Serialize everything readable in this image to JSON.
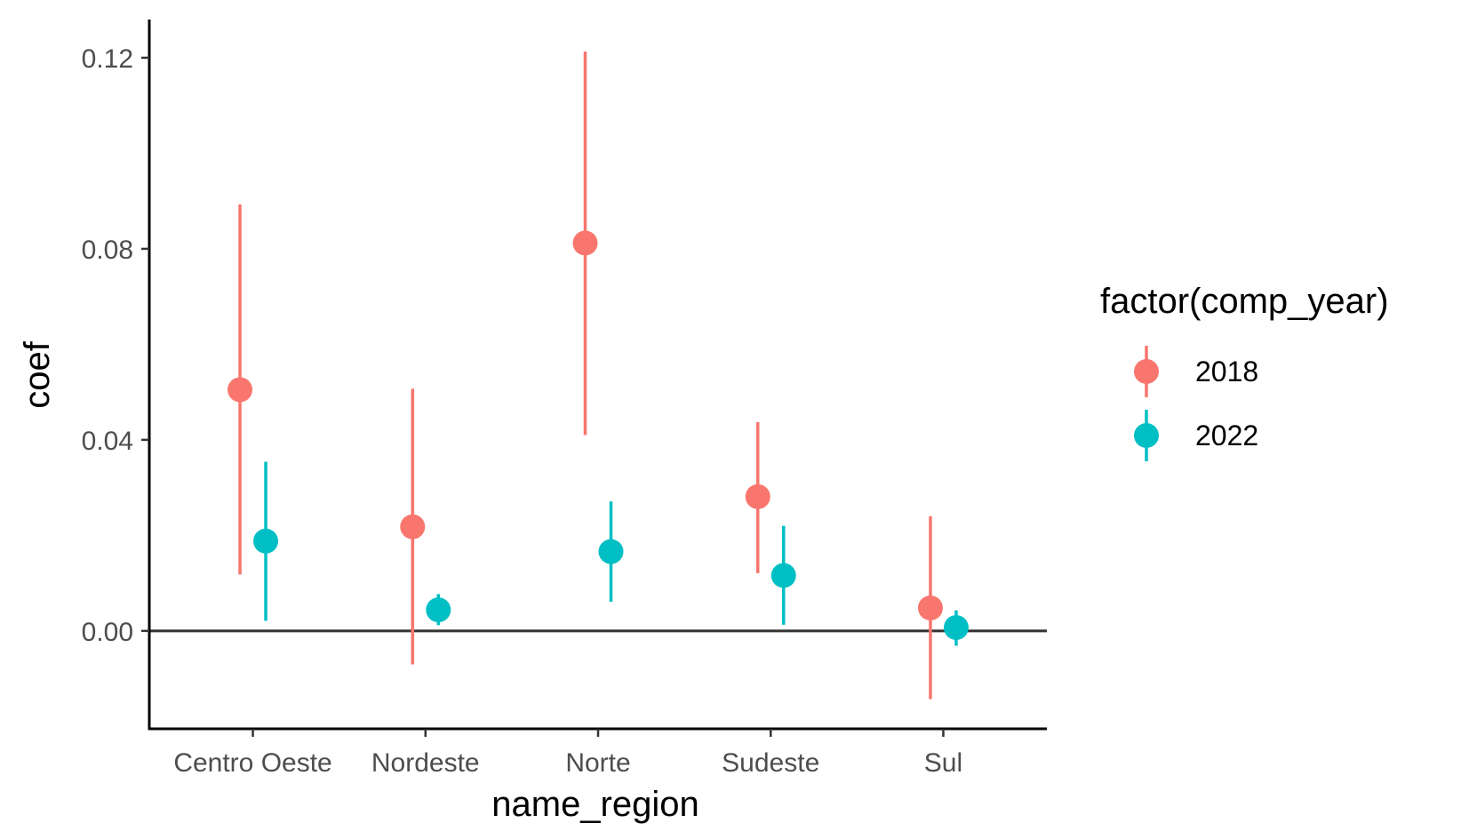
{
  "chart_data": {
    "type": "scatter",
    "subtype": "pointrange-dodged",
    "xlabel": "name_region",
    "ylabel": "coef",
    "categories": [
      "Centro Oeste",
      "Nordeste",
      "Norte",
      "Sudeste",
      "Sul"
    ],
    "ylim": [
      -0.0205,
      0.128
    ],
    "yticks": [
      0.0,
      0.04,
      0.08,
      0.12
    ],
    "ytick_labels": [
      "0.00",
      "0.04",
      "0.08",
      "0.12"
    ],
    "reference_line_y": 0,
    "grid": false,
    "legend": {
      "title": "factor(comp_year)",
      "position": "right"
    },
    "series": [
      {
        "name": "2018",
        "color": "#F8766D",
        "values": [
          0.0505,
          0.0218,
          0.0812,
          0.0281,
          0.0048
        ],
        "lower": [
          0.0118,
          -0.007,
          0.041,
          0.0121,
          -0.0143
        ],
        "upper": [
          0.0893,
          0.0507,
          0.1213,
          0.0437,
          0.024
        ]
      },
      {
        "name": "2022",
        "color": "#00BFC4",
        "values": [
          0.0188,
          0.0044,
          0.0166,
          0.0116,
          0.0007
        ],
        "lower": [
          0.0021,
          0.0012,
          0.0061,
          0.0013,
          -0.0031
        ],
        "upper": [
          0.0354,
          0.0077,
          0.0271,
          0.022,
          0.0043
        ]
      }
    ]
  }
}
